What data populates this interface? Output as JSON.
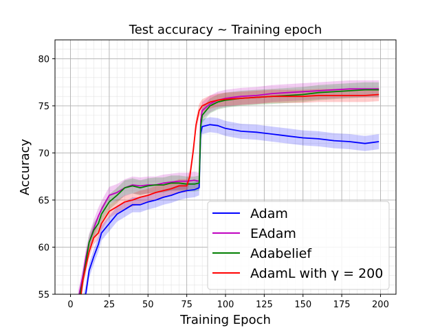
{
  "chart_data": {
    "type": "line",
    "title": "Test accuracy ~ Training epoch",
    "xlabel": "Training Epoch",
    "ylabel": "Accuracy",
    "xlim": [
      -10,
      210
    ],
    "ylim": [
      55,
      82
    ],
    "xticks": [
      0,
      25,
      50,
      75,
      100,
      125,
      150,
      175,
      200
    ],
    "yticks": [
      55,
      60,
      65,
      70,
      75,
      80
    ],
    "grid": "major and minor",
    "legend_position": "lower-right",
    "shaded_band": "variation band around each line",
    "series": [
      {
        "name": "Adam",
        "color": "#0000ff",
        "x": [
          5,
          8,
          10,
          12,
          15,
          18,
          20,
          25,
          30,
          35,
          40,
          45,
          50,
          55,
          60,
          65,
          70,
          75,
          80,
          83,
          84,
          85,
          90,
          95,
          100,
          110,
          120,
          130,
          140,
          150,
          160,
          170,
          180,
          190,
          199
        ],
        "y": [
          53.0,
          54.0,
          55.2,
          57.5,
          59.0,
          60.3,
          61.5,
          62.5,
          63.5,
          64.0,
          64.5,
          64.5,
          64.8,
          65.0,
          65.3,
          65.5,
          65.8,
          66.0,
          66.1,
          66.3,
          72.0,
          72.8,
          73.0,
          72.9,
          72.6,
          72.3,
          72.2,
          72.0,
          71.8,
          71.6,
          71.5,
          71.3,
          71.2,
          71.0,
          71.2
        ],
        "band": 0.8
      },
      {
        "name": "EAdam",
        "color": "#bf00bf",
        "x": [
          5,
          8,
          10,
          12,
          15,
          18,
          20,
          25,
          30,
          35,
          40,
          45,
          50,
          55,
          60,
          65,
          70,
          75,
          80,
          83,
          84,
          85,
          90,
          95,
          100,
          110,
          120,
          130,
          140,
          150,
          160,
          170,
          180,
          190,
          199
        ],
        "y": [
          54.5,
          57.0,
          59.0,
          60.5,
          62.0,
          63.3,
          64.0,
          65.5,
          65.8,
          66.3,
          66.6,
          66.5,
          66.6,
          66.6,
          66.8,
          66.9,
          67.0,
          67.0,
          67.1,
          67.0,
          73.5,
          74.5,
          75.2,
          75.6,
          75.8,
          76.0,
          76.1,
          76.3,
          76.4,
          76.5,
          76.6,
          76.7,
          76.8,
          76.8,
          76.8
        ],
        "band": 0.9
      },
      {
        "name": "Adabelief",
        "color": "#007f00",
        "x": [
          5,
          8,
          10,
          12,
          15,
          18,
          20,
          25,
          30,
          35,
          40,
          45,
          50,
          55,
          60,
          65,
          70,
          75,
          80,
          83,
          84,
          85,
          90,
          95,
          100,
          110,
          120,
          130,
          140,
          150,
          160,
          170,
          180,
          190,
          199
        ],
        "y": [
          54.0,
          56.5,
          58.5,
          60.5,
          61.8,
          62.5,
          63.5,
          64.8,
          65.5,
          66.3,
          66.5,
          66.3,
          66.5,
          66.6,
          66.6,
          66.8,
          66.8,
          66.7,
          66.7,
          66.8,
          72.8,
          74.0,
          75.0,
          75.4,
          75.6,
          75.8,
          75.9,
          76.0,
          76.1,
          76.2,
          76.4,
          76.5,
          76.6,
          76.7,
          76.7
        ],
        "band": 0.8
      },
      {
        "name": "AdamL with γ = 200",
        "color": "#ff0000",
        "x": [
          5,
          8,
          10,
          12,
          15,
          18,
          20,
          25,
          30,
          35,
          40,
          45,
          50,
          55,
          60,
          65,
          70,
          75,
          77,
          79,
          81,
          83,
          85,
          90,
          95,
          100,
          110,
          120,
          130,
          140,
          150,
          160,
          170,
          180,
          190,
          199
        ],
        "y": [
          52.5,
          56.5,
          58.0,
          59.5,
          61.0,
          61.5,
          62.5,
          63.8,
          64.3,
          64.8,
          65.0,
          65.3,
          65.5,
          65.8,
          66.0,
          66.2,
          66.5,
          66.5,
          67.5,
          70.0,
          73.0,
          74.5,
          75.0,
          75.4,
          75.6,
          75.7,
          75.8,
          75.9,
          76.0,
          76.0,
          76.0,
          76.1,
          76.1,
          76.1,
          76.1,
          76.2
        ],
        "band": 0.7
      }
    ],
    "legend": [
      {
        "label": "Adam",
        "color": "#0000ff"
      },
      {
        "label": "EAdam",
        "color": "#bf00bf"
      },
      {
        "label": "Adabelief",
        "color": "#007f00"
      },
      {
        "label": "AdamL with γ = 200",
        "color": "#ff0000"
      }
    ]
  }
}
